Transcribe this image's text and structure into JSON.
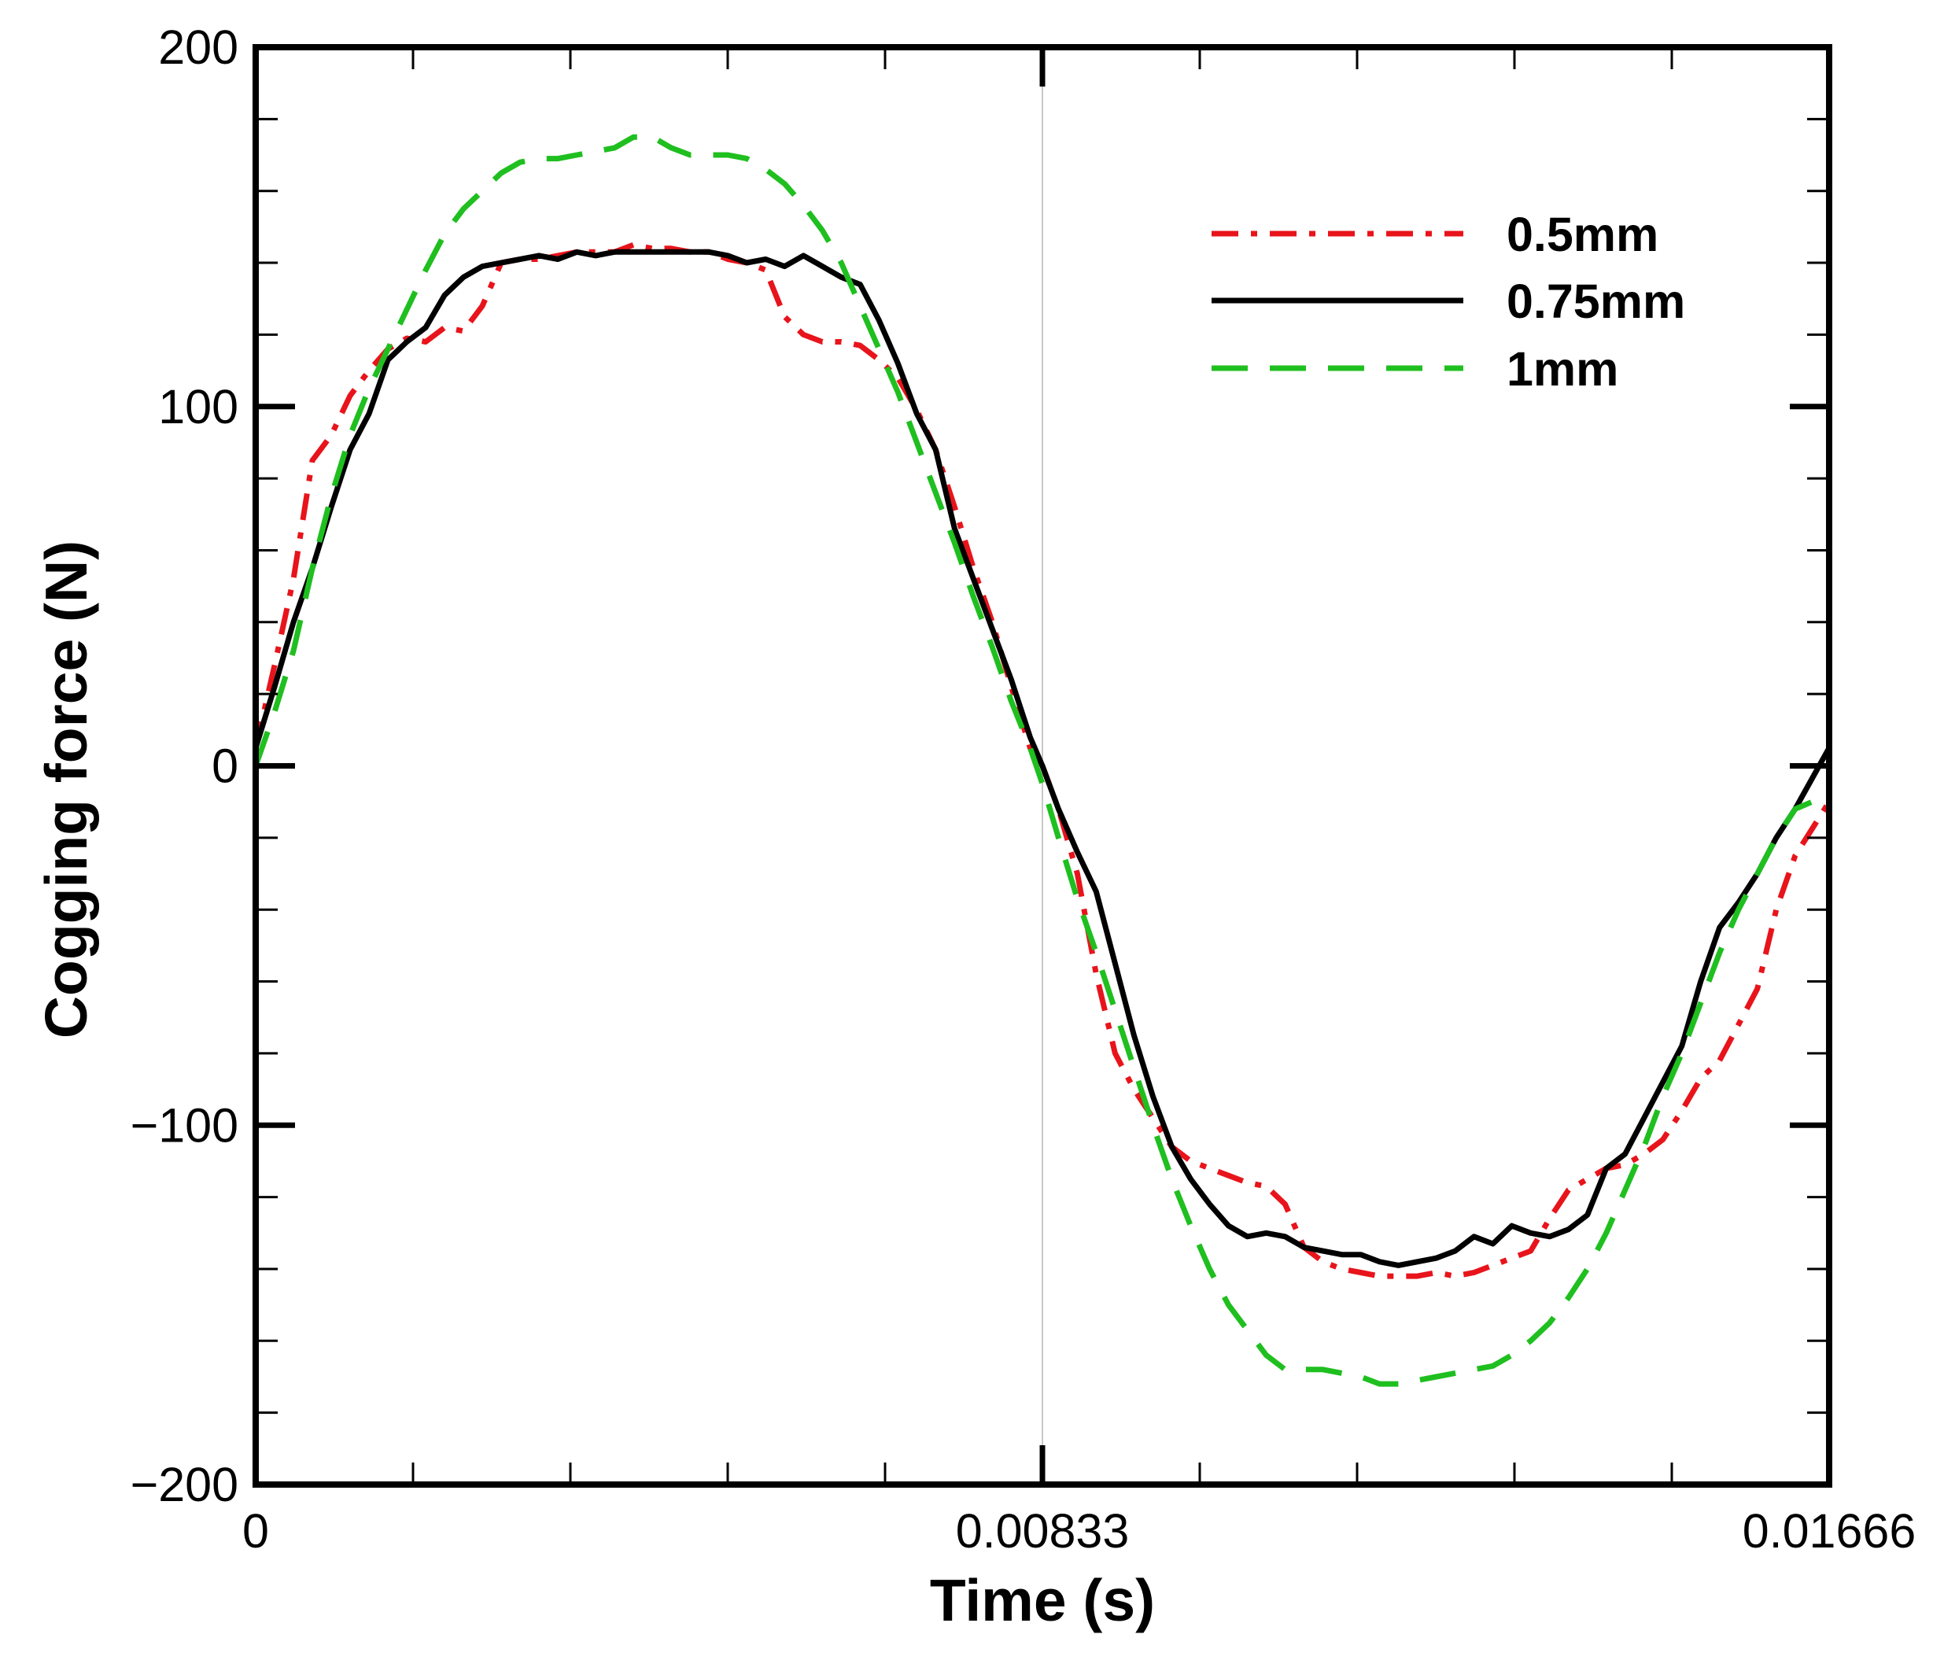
{
  "chart_data": {
    "type": "line",
    "title": "",
    "xlabel": "Time (s)",
    "ylabel": "Cogging force (N)",
    "xlim": [
      0,
      0.01666
    ],
    "ylim": [
      -200,
      200
    ],
    "x_ticks": [
      "0",
      "0.00833",
      "0.01666"
    ],
    "y_ticks": [
      "200",
      "100",
      "0",
      "−100",
      "−200"
    ],
    "grid": "vertical line at 0.00833",
    "legend_position": "top-right",
    "series": [
      {
        "name": "0.5mm",
        "color": "#e8141b",
        "dash": "dash-dot",
        "points": [
          [
            0,
            5
          ],
          [
            0.0002,
            28
          ],
          [
            0.0004,
            52
          ],
          [
            0.0006,
            85
          ],
          [
            0.0008,
            92
          ],
          [
            0.001,
            103
          ],
          [
            0.0012,
            110
          ],
          [
            0.0014,
            116
          ],
          [
            0.0016,
            119
          ],
          [
            0.0018,
            118
          ],
          [
            0.002,
            122
          ],
          [
            0.0022,
            121
          ],
          [
            0.0024,
            128
          ],
          [
            0.0026,
            140
          ],
          [
            0.0028,
            141
          ],
          [
            0.003,
            141
          ],
          [
            0.0032,
            142
          ],
          [
            0.0034,
            143
          ],
          [
            0.0036,
            143
          ],
          [
            0.0038,
            143
          ],
          [
            0.004,
            145
          ],
          [
            0.0042,
            144
          ],
          [
            0.0044,
            144
          ],
          [
            0.0046,
            143
          ],
          [
            0.0048,
            143
          ],
          [
            0.005,
            141
          ],
          [
            0.0052,
            140
          ],
          [
            0.0054,
            138
          ],
          [
            0.0056,
            125
          ],
          [
            0.0058,
            120
          ],
          [
            0.006,
            118
          ],
          [
            0.0062,
            118
          ],
          [
            0.0064,
            117
          ],
          [
            0.0066,
            113
          ],
          [
            0.0068,
            108
          ],
          [
            0.007,
            99
          ],
          [
            0.0072,
            88
          ],
          [
            0.0074,
            72
          ],
          [
            0.0076,
            55
          ],
          [
            0.0078,
            40
          ],
          [
            0.008,
            22
          ],
          [
            0.0082,
            5
          ],
          [
            0.00833,
            0
          ],
          [
            0.0085,
            -12
          ],
          [
            0.0087,
            -30
          ],
          [
            0.0089,
            -58
          ],
          [
            0.0091,
            -80
          ],
          [
            0.0093,
            -90
          ],
          [
            0.0095,
            -98
          ],
          [
            0.0097,
            -106
          ],
          [
            0.0099,
            -110
          ],
          [
            0.0101,
            -112
          ],
          [
            0.0103,
            -114
          ],
          [
            0.0105,
            -116
          ],
          [
            0.0107,
            -117
          ],
          [
            0.0109,
            -122
          ],
          [
            0.0111,
            -134
          ],
          [
            0.0113,
            -138
          ],
          [
            0.0115,
            -140
          ],
          [
            0.0117,
            -141
          ],
          [
            0.0119,
            -142
          ],
          [
            0.0121,
            -142
          ],
          [
            0.0123,
            -142
          ],
          [
            0.0125,
            -141
          ],
          [
            0.0127,
            -142
          ],
          [
            0.0129,
            -141
          ],
          [
            0.0131,
            -139
          ],
          [
            0.0133,
            -137
          ],
          [
            0.0135,
            -135
          ],
          [
            0.0137,
            -126
          ],
          [
            0.0139,
            -118
          ],
          [
            0.0141,
            -115
          ],
          [
            0.0143,
            -112
          ],
          [
            0.0145,
            -111
          ],
          [
            0.0147,
            -108
          ],
          [
            0.0149,
            -104
          ],
          [
            0.0151,
            -96
          ],
          [
            0.0153,
            -87
          ],
          [
            0.0155,
            -82
          ],
          [
            0.0157,
            -72
          ],
          [
            0.0159,
            -62
          ],
          [
            0.0161,
            -40
          ],
          [
            0.0163,
            -25
          ],
          [
            0.01666,
            -10
          ]
        ]
      },
      {
        "name": "0.75mm",
        "color": "#000000",
        "dash": "solid",
        "points": [
          [
            0,
            5
          ],
          [
            0.0002,
            22
          ],
          [
            0.0004,
            40
          ],
          [
            0.0006,
            55
          ],
          [
            0.0008,
            72
          ],
          [
            0.001,
            88
          ],
          [
            0.0012,
            98
          ],
          [
            0.0014,
            113
          ],
          [
            0.0016,
            118
          ],
          [
            0.0018,
            122
          ],
          [
            0.002,
            131
          ],
          [
            0.0022,
            136
          ],
          [
            0.0024,
            139
          ],
          [
            0.0026,
            140
          ],
          [
            0.0028,
            141
          ],
          [
            0.003,
            142
          ],
          [
            0.0032,
            141
          ],
          [
            0.0034,
            143
          ],
          [
            0.0036,
            142
          ],
          [
            0.0038,
            143
          ],
          [
            0.004,
            143
          ],
          [
            0.0042,
            143
          ],
          [
            0.0044,
            143
          ],
          [
            0.0046,
            143
          ],
          [
            0.0048,
            143
          ],
          [
            0.005,
            142
          ],
          [
            0.0052,
            140
          ],
          [
            0.0054,
            141
          ],
          [
            0.0056,
            139
          ],
          [
            0.0058,
            142
          ],
          [
            0.006,
            139
          ],
          [
            0.0062,
            136
          ],
          [
            0.0064,
            134
          ],
          [
            0.0066,
            124
          ],
          [
            0.0068,
            112
          ],
          [
            0.007,
            98
          ],
          [
            0.0072,
            88
          ],
          [
            0.0074,
            66
          ],
          [
            0.0076,
            52
          ],
          [
            0.0078,
            38
          ],
          [
            0.008,
            24
          ],
          [
            0.0082,
            8
          ],
          [
            0.00833,
            0
          ],
          [
            0.0085,
            -12
          ],
          [
            0.0087,
            -24
          ],
          [
            0.0089,
            -35
          ],
          [
            0.0091,
            -55
          ],
          [
            0.0093,
            -75
          ],
          [
            0.0095,
            -92
          ],
          [
            0.0097,
            -106
          ],
          [
            0.0099,
            -115
          ],
          [
            0.0101,
            -122
          ],
          [
            0.0103,
            -128
          ],
          [
            0.0105,
            -131
          ],
          [
            0.0107,
            -130
          ],
          [
            0.0109,
            -131
          ],
          [
            0.0111,
            -134
          ],
          [
            0.0113,
            -135
          ],
          [
            0.0115,
            -136
          ],
          [
            0.0117,
            -136
          ],
          [
            0.0119,
            -138
          ],
          [
            0.0121,
            -139
          ],
          [
            0.0123,
            -138
          ],
          [
            0.0125,
            -137
          ],
          [
            0.0127,
            -135
          ],
          [
            0.0129,
            -131
          ],
          [
            0.0131,
            -133
          ],
          [
            0.0133,
            -128
          ],
          [
            0.0135,
            -130
          ],
          [
            0.0137,
            -131
          ],
          [
            0.0139,
            -129
          ],
          [
            0.0141,
            -125
          ],
          [
            0.0143,
            -112
          ],
          [
            0.0145,
            -108
          ],
          [
            0.0147,
            -98
          ],
          [
            0.0149,
            -88
          ],
          [
            0.0151,
            -78
          ],
          [
            0.0153,
            -60
          ],
          [
            0.0155,
            -45
          ],
          [
            0.0157,
            -38
          ],
          [
            0.0159,
            -30
          ],
          [
            0.0161,
            -20
          ],
          [
            0.0163,
            -12
          ],
          [
            0.01666,
            5
          ]
        ]
      },
      {
        "name": "1mm",
        "color": "#1fbf1f",
        "dash": "dashed",
        "points": [
          [
            0,
            0
          ],
          [
            0.0002,
            15
          ],
          [
            0.0004,
            32
          ],
          [
            0.0006,
            55
          ],
          [
            0.0008,
            75
          ],
          [
            0.001,
            92
          ],
          [
            0.0012,
            105
          ],
          [
            0.0014,
            116
          ],
          [
            0.0016,
            127
          ],
          [
            0.0018,
            138
          ],
          [
            0.002,
            148
          ],
          [
            0.0022,
            155
          ],
          [
            0.0024,
            160
          ],
          [
            0.0026,
            165
          ],
          [
            0.0028,
            168
          ],
          [
            0.003,
            169
          ],
          [
            0.0032,
            169
          ],
          [
            0.0034,
            170
          ],
          [
            0.0036,
            171
          ],
          [
            0.0038,
            172
          ],
          [
            0.004,
            175
          ],
          [
            0.0042,
            175
          ],
          [
            0.0044,
            172
          ],
          [
            0.0046,
            170
          ],
          [
            0.0048,
            170
          ],
          [
            0.005,
            170
          ],
          [
            0.0052,
            169
          ],
          [
            0.0054,
            166
          ],
          [
            0.0056,
            162
          ],
          [
            0.0058,
            156
          ],
          [
            0.006,
            149
          ],
          [
            0.0062,
            140
          ],
          [
            0.0064,
            128
          ],
          [
            0.0066,
            116
          ],
          [
            0.0068,
            104
          ],
          [
            0.007,
            90
          ],
          [
            0.0072,
            76
          ],
          [
            0.0074,
            62
          ],
          [
            0.0076,
            47
          ],
          [
            0.0078,
            33
          ],
          [
            0.008,
            18
          ],
          [
            0.0082,
            5
          ],
          [
            0.00833,
            -5
          ],
          [
            0.0085,
            -20
          ],
          [
            0.0087,
            -37
          ],
          [
            0.0089,
            -52
          ],
          [
            0.0091,
            -68
          ],
          [
            0.0093,
            -84
          ],
          [
            0.0095,
            -100
          ],
          [
            0.0097,
            -115
          ],
          [
            0.0099,
            -128
          ],
          [
            0.0101,
            -140
          ],
          [
            0.0103,
            -150
          ],
          [
            0.0105,
            -157
          ],
          [
            0.0107,
            -164
          ],
          [
            0.0109,
            -168
          ],
          [
            0.0111,
            -168
          ],
          [
            0.0113,
            -168
          ],
          [
            0.0115,
            -169
          ],
          [
            0.0117,
            -170
          ],
          [
            0.0119,
            -172
          ],
          [
            0.0121,
            -172
          ],
          [
            0.0123,
            -171
          ],
          [
            0.0125,
            -170
          ],
          [
            0.0127,
            -169
          ],
          [
            0.0129,
            -168
          ],
          [
            0.0131,
            -167
          ],
          [
            0.0133,
            -164
          ],
          [
            0.0135,
            -160
          ],
          [
            0.0137,
            -155
          ],
          [
            0.0139,
            -148
          ],
          [
            0.0141,
            -140
          ],
          [
            0.0143,
            -130
          ],
          [
            0.0145,
            -118
          ],
          [
            0.0147,
            -106
          ],
          [
            0.0149,
            -92
          ],
          [
            0.0151,
            -80
          ],
          [
            0.0153,
            -66
          ],
          [
            0.0155,
            -52
          ],
          [
            0.0157,
            -40
          ],
          [
            0.0159,
            -30
          ],
          [
            0.0161,
            -20
          ],
          [
            0.0163,
            -12
          ],
          [
            0.01666,
            -8
          ]
        ]
      }
    ]
  }
}
